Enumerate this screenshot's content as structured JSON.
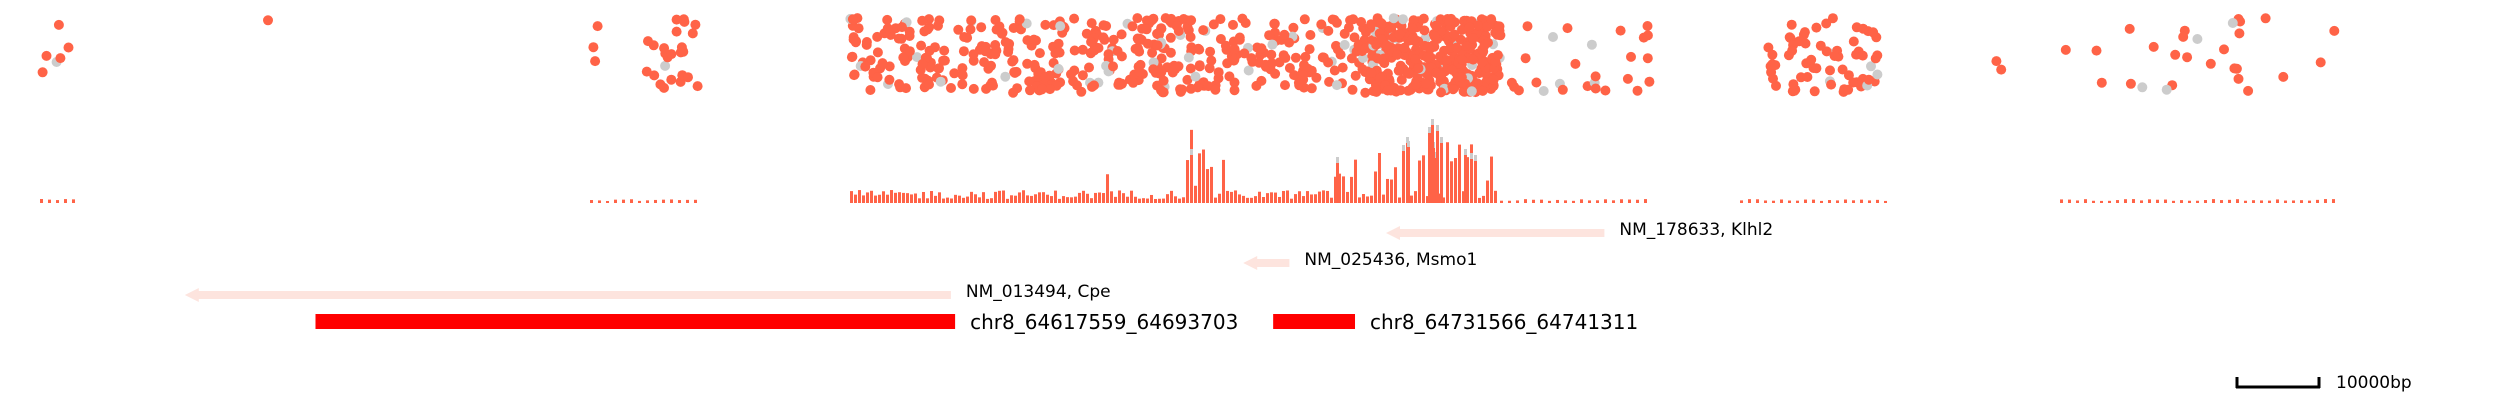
{
  "chart_data": {
    "type": "genome-track",
    "colors": {
      "hit": "#ff6347",
      "background": "#cccccc",
      "gene": "#fde4de",
      "region": "#ff0000",
      "text": "#000000"
    },
    "genes": [
      {
        "label": "NM_178633, Klhl2",
        "start": 64745000,
        "end": 64771000,
        "strand": "-",
        "row": 0
      },
      {
        "label": "NM_025436, Msmo1",
        "start": 64733500,
        "end": 64728000,
        "strand": "-",
        "row": 1
      },
      {
        "label": "NM_013494, Cpe",
        "start": 64693200,
        "end": 64602000,
        "strand": "-",
        "row": 2
      }
    ],
    "regions": [
      {
        "label": "chr8_64617559_64693703",
        "start": 64617559,
        "end": 64693703
      },
      {
        "label": "chr8_64731566_64741311",
        "start": 64731566,
        "end": 64741311
      }
    ],
    "scalebar": {
      "length_bp": 10000,
      "label": "10000bp"
    }
  }
}
